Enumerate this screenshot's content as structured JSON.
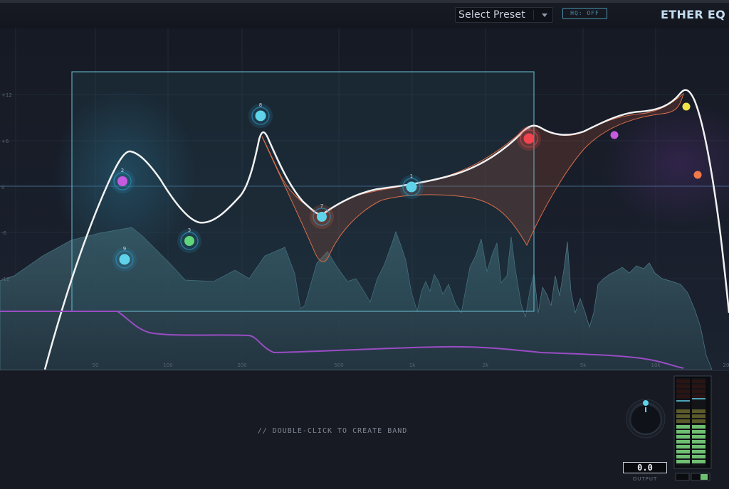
{
  "app": {
    "title": "ETHER EQ"
  },
  "toolbar": {
    "preset_label": "Select Preset",
    "hq_label": "HQ: OFF"
  },
  "graph": {
    "db_labels": [
      "+12",
      "+6",
      "0",
      "-6",
      "-12"
    ],
    "freq_labels": [
      "50",
      "100",
      "200",
      "500",
      "1k",
      "2k",
      "5k",
      "10k",
      "20"
    ],
    "bands": [
      {
        "id": "1",
        "color": "#5fd3ea"
      },
      {
        "id": "2",
        "color": "#c65be0"
      },
      {
        "id": "3",
        "color": "#5fd77a"
      },
      {
        "id": "6",
        "color": "#f0444f"
      },
      {
        "id": "7",
        "color": "#5fd3ea"
      },
      {
        "id": "8",
        "color": "#5fd3ea"
      },
      {
        "id": "9",
        "color": "#5fd3ea"
      }
    ],
    "extra_band_colors": [
      "#c65be0",
      "#f0e44a",
      "#f0794a"
    ]
  },
  "footer": {
    "hint": "// DOUBLE-CLICK TO CREATE BAND",
    "output_value": "0.0",
    "output_label": "OUTPUT"
  },
  "colors": {
    "accent": "#5fd3ea",
    "curve": "#ffffff",
    "purple_line": "#9a4cc4"
  }
}
